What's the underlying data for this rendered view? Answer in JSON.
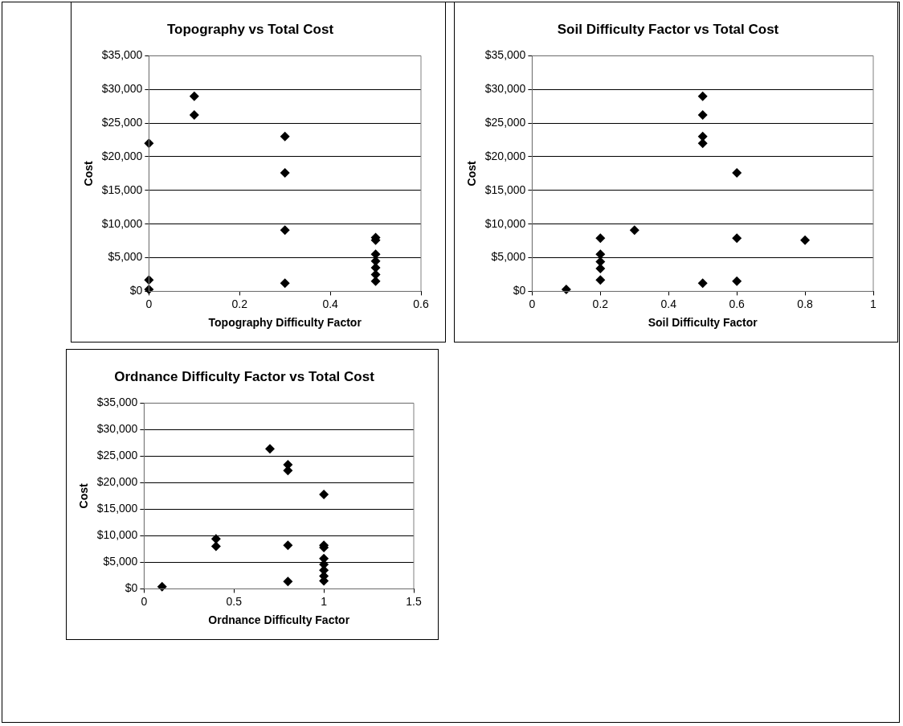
{
  "chart_data": [
    {
      "type": "scatter",
      "title": "Topography vs Total Cost",
      "xlabel": "Topography Difficulty Factor",
      "ylabel": "Cost",
      "marker": "diamond",
      "grid": "y",
      "legend": false,
      "xlim": [
        0,
        0.6
      ],
      "xticks": [
        0,
        0.2,
        0.4,
        0.6
      ],
      "ylim": [
        0,
        35000
      ],
      "yticks": [
        {
          "value": 0,
          "label": "$0"
        },
        {
          "value": 5000,
          "label": "$5,000"
        },
        {
          "value": 10000,
          "label": "$10,000"
        },
        {
          "value": 15000,
          "label": "$15,000"
        },
        {
          "value": 20000,
          "label": "$20,000"
        },
        {
          "value": 25000,
          "label": "$25,000"
        },
        {
          "value": 30000,
          "label": "$30,000"
        },
        {
          "value": 35000,
          "label": "$35,000"
        }
      ],
      "series": [
        {
          "color": "#000000",
          "x": [
            0,
            0,
            0,
            0.1,
            0.1,
            0.3,
            0.3,
            0.3,
            0.3,
            0.5,
            0.5,
            0.5,
            0.5,
            0.5,
            0.5,
            0.5
          ],
          "values": [
            22000,
            1700,
            300,
            29000,
            26200,
            23000,
            17600,
            9100,
            1200,
            8000,
            7600,
            5500,
            4500,
            3500,
            2500,
            1500
          ]
        }
      ]
    },
    {
      "type": "scatter",
      "title": "Soil Difficulty Factor vs Total Cost",
      "xlabel": "Soil Difficulty Factor",
      "ylabel": "Cost",
      "marker": "diamond",
      "grid": "y",
      "legend": false,
      "xlim": [
        0,
        1
      ],
      "xticks": [
        0,
        0.2,
        0.4,
        0.6,
        0.8,
        1
      ],
      "ylim": [
        0,
        35000
      ],
      "yticks": [
        {
          "value": 0,
          "label": "$0"
        },
        {
          "value": 5000,
          "label": "$5,000"
        },
        {
          "value": 10000,
          "label": "$10,000"
        },
        {
          "value": 15000,
          "label": "$15,000"
        },
        {
          "value": 20000,
          "label": "$20,000"
        },
        {
          "value": 25000,
          "label": "$25,000"
        },
        {
          "value": 30000,
          "label": "$30,000"
        },
        {
          "value": 35000,
          "label": "$35,000"
        }
      ],
      "series": [
        {
          "color": "#000000",
          "x": [
            0.1,
            0.2,
            0.2,
            0.2,
            0.2,
            0.2,
            0.3,
            0.5,
            0.5,
            0.5,
            0.5,
            0.5,
            0.6,
            0.6,
            0.6,
            0.8
          ],
          "values": [
            300,
            7900,
            5500,
            4400,
            3400,
            1700,
            9100,
            29000,
            26200,
            23000,
            22000,
            1200,
            17600,
            7900,
            1500,
            7600
          ]
        }
      ]
    },
    {
      "type": "scatter",
      "title": "Ordnance Difficulty Factor vs Total Cost",
      "xlabel": "Ordnance Difficulty Factor",
      "ylabel": "Cost",
      "marker": "diamond",
      "grid": "y",
      "legend": false,
      "xlim": [
        0,
        1.5
      ],
      "xticks": [
        0,
        0.5,
        1,
        1.5
      ],
      "ylim": [
        0,
        35000
      ],
      "yticks": [
        {
          "value": 0,
          "label": "$0"
        },
        {
          "value": 5000,
          "label": "$5,000"
        },
        {
          "value": 10000,
          "label": "$10,000"
        },
        {
          "value": 15000,
          "label": "$15,000"
        },
        {
          "value": 20000,
          "label": "$20,000"
        },
        {
          "value": 25000,
          "label": "$25,000"
        },
        {
          "value": 30000,
          "label": "$30,000"
        },
        {
          "value": 35000,
          "label": "$35,000"
        }
      ],
      "series": [
        {
          "color": "#000000",
          "x": [
            0.1,
            0.4,
            0.4,
            0.7,
            0.8,
            0.8,
            0.8,
            0.8,
            1,
            1,
            1,
            1,
            1,
            1,
            1,
            1
          ],
          "values": [
            400,
            9400,
            8000,
            26400,
            23400,
            22300,
            8200,
            1400,
            17800,
            8200,
            7800,
            5700,
            4600,
            3500,
            2400,
            1500
          ]
        }
      ]
    }
  ]
}
